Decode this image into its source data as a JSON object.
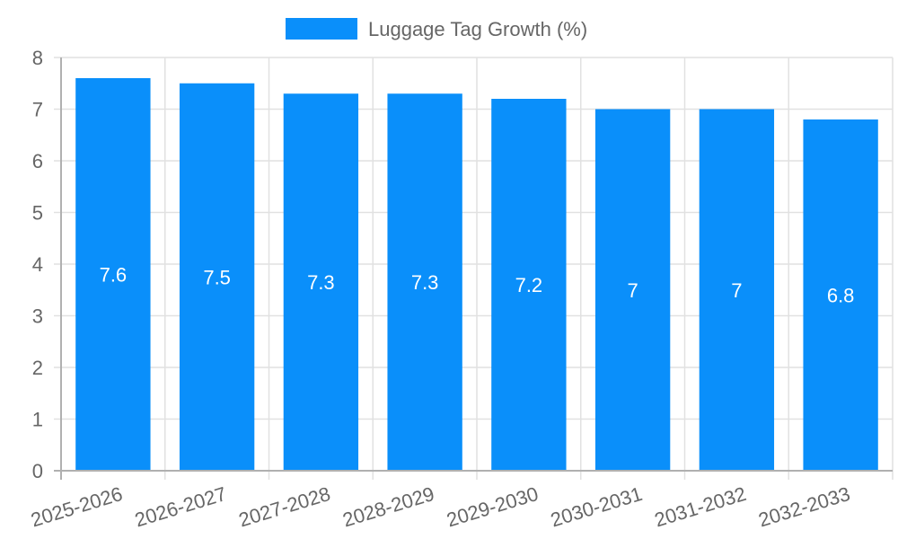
{
  "chart_data": {
    "type": "bar",
    "title": "",
    "legend": [
      {
        "label": "Luggage Tag Growth (%)",
        "color": "#0a8ffa"
      }
    ],
    "categories": [
      "2025-2026",
      "2026-2027",
      "2027-2028",
      "2028-2029",
      "2029-2030",
      "2030-2031",
      "2031-2032",
      "2032-2033"
    ],
    "series": [
      {
        "name": "Luggage Tag Growth (%)",
        "values": [
          7.6,
          7.5,
          7.3,
          7.3,
          7.2,
          7,
          7,
          6.8
        ],
        "color": "#0a8ffa"
      }
    ],
    "data_labels": [
      "7.6",
      "7.5",
      "7.3",
      "7.3",
      "7.2",
      "7",
      "7",
      "6.8"
    ],
    "xlabel": "",
    "ylabel": "",
    "ylim": [
      0,
      8
    ],
    "yticks": [
      0,
      1,
      2,
      3,
      4,
      5,
      6,
      7,
      8
    ],
    "grid": true,
    "legend_position": "top"
  }
}
